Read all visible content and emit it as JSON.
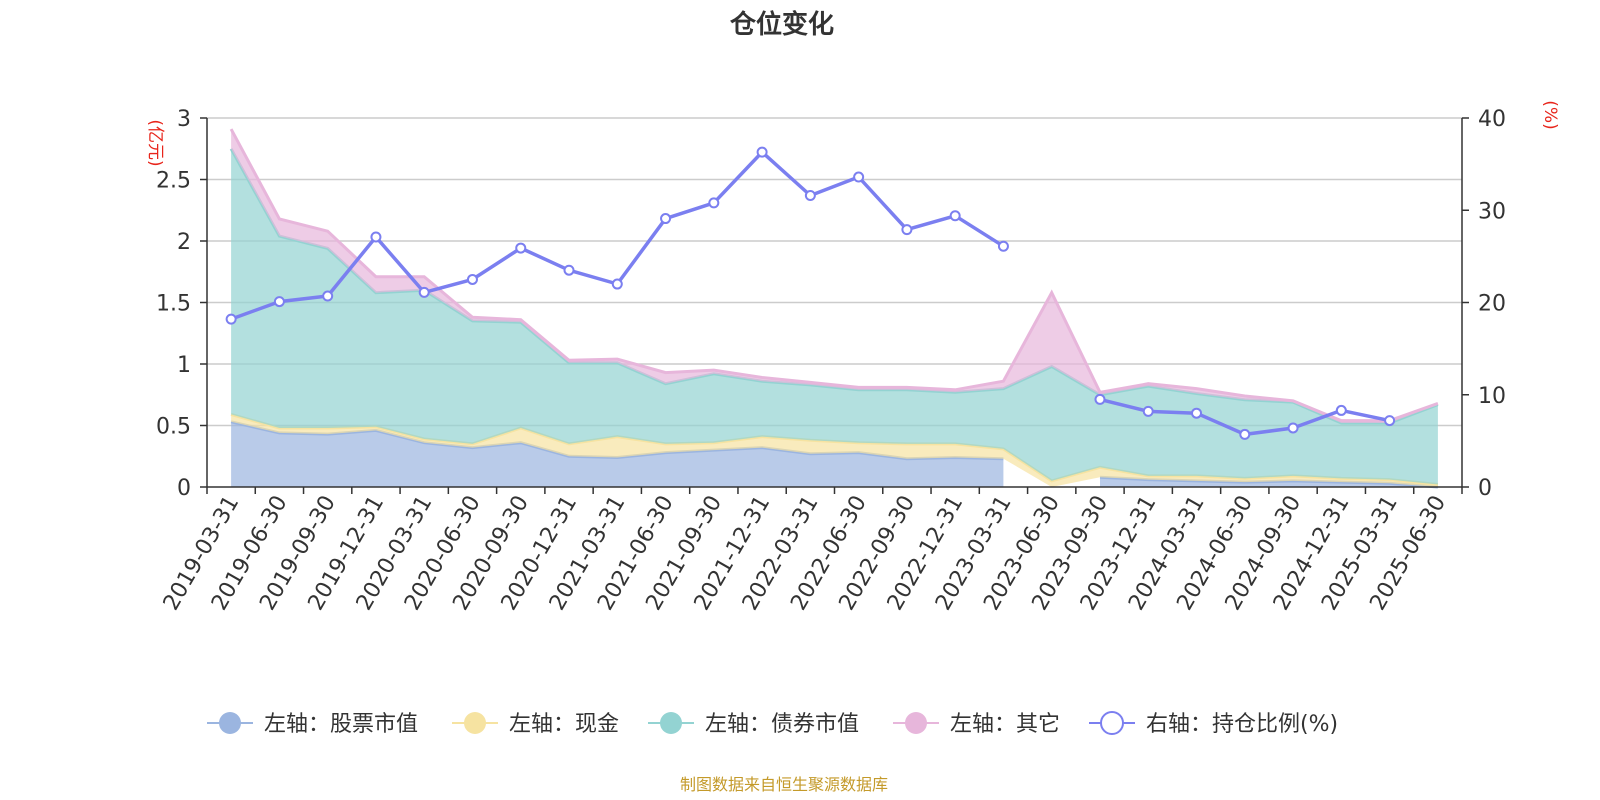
{
  "chart_data": {
    "type": "area",
    "title": "仓位变化",
    "left_unit": "(亿元)",
    "right_unit": "(%)",
    "source": "制图数据来自恒生聚源数据库",
    "left_axis": {
      "min": 0,
      "max": 3,
      "ticks": [
        0,
        0.5,
        1,
        1.5,
        2,
        2.5,
        3
      ]
    },
    "right_axis": {
      "min": 0,
      "max": 40,
      "ticks": [
        0,
        10,
        20,
        30,
        40
      ]
    },
    "categories": [
      "2019-03-31",
      "2019-06-30",
      "2019-09-30",
      "2019-12-31",
      "2020-03-31",
      "2020-06-30",
      "2020-09-30",
      "2020-12-31",
      "2021-03-31",
      "2021-06-30",
      "2021-09-30",
      "2021-12-31",
      "2022-03-31",
      "2022-06-30",
      "2022-09-30",
      "2022-12-31",
      "2023-03-31",
      "2023-06-30",
      "2023-09-30",
      "2023-12-31",
      "2024-03-31",
      "2024-06-30",
      "2024-09-30",
      "2024-12-31",
      "2025-03-31",
      "2025-06-30"
    ],
    "series": [
      {
        "name": "左轴：股票市值",
        "axis": "left",
        "kind": "stack-area",
        "color": "#9bb5e0",
        "values": [
          0.53,
          0.44,
          0.43,
          0.46,
          0.36,
          0.32,
          0.36,
          0.25,
          0.24,
          0.28,
          0.3,
          0.32,
          0.27,
          0.28,
          0.23,
          0.24,
          0.23,
          null,
          0.08,
          0.06,
          0.05,
          0.04,
          0.05,
          0.04,
          0.03,
          0.0
        ]
      },
      {
        "name": "左轴：现金",
        "axis": "left",
        "kind": "stack-area",
        "color": "#f6e3a1",
        "values": [
          0.06,
          0.04,
          0.05,
          0.03,
          0.03,
          0.03,
          0.12,
          0.1,
          0.17,
          0.07,
          0.06,
          0.09,
          0.11,
          0.08,
          0.12,
          0.11,
          0.08,
          0.05,
          0.08,
          0.03,
          0.04,
          0.03,
          0.04,
          0.03,
          0.03,
          0.02
        ]
      },
      {
        "name": "左轴：债券市值",
        "axis": "left",
        "kind": "stack-area",
        "color": "#93d3d2",
        "values": [
          2.16,
          1.56,
          1.46,
          1.09,
          1.21,
          1.0,
          0.86,
          0.66,
          0.6,
          0.49,
          0.56,
          0.45,
          0.45,
          0.43,
          0.44,
          0.42,
          0.49,
          0.93,
          0.59,
          0.73,
          0.67,
          0.64,
          0.6,
          0.45,
          0.46,
          0.65
        ]
      },
      {
        "name": "左轴：其它",
        "axis": "left",
        "kind": "stack-area",
        "color": "#e7b6db",
        "values": [
          0.16,
          0.14,
          0.14,
          0.13,
          0.11,
          0.03,
          0.02,
          0.02,
          0.03,
          0.09,
          0.03,
          0.03,
          0.02,
          0.02,
          0.02,
          0.02,
          0.06,
          0.6,
          0.02,
          0.02,
          0.04,
          0.03,
          0.01,
          0.02,
          0.02,
          0.01
        ]
      },
      {
        "name": "右轴：持仓比例(%)",
        "axis": "right",
        "kind": "line",
        "color": "#7b7ff0",
        "values": [
          18.2,
          20.1,
          20.7,
          27.1,
          21.1,
          22.5,
          25.9,
          23.5,
          22.0,
          29.1,
          30.8,
          36.3,
          31.6,
          33.6,
          27.9,
          29.4,
          26.1,
          null,
          9.5,
          8.2,
          8.0,
          5.7,
          6.4,
          8.3,
          7.2,
          null
        ]
      }
    ],
    "legend_position": "bottom-center",
    "grid": true
  }
}
